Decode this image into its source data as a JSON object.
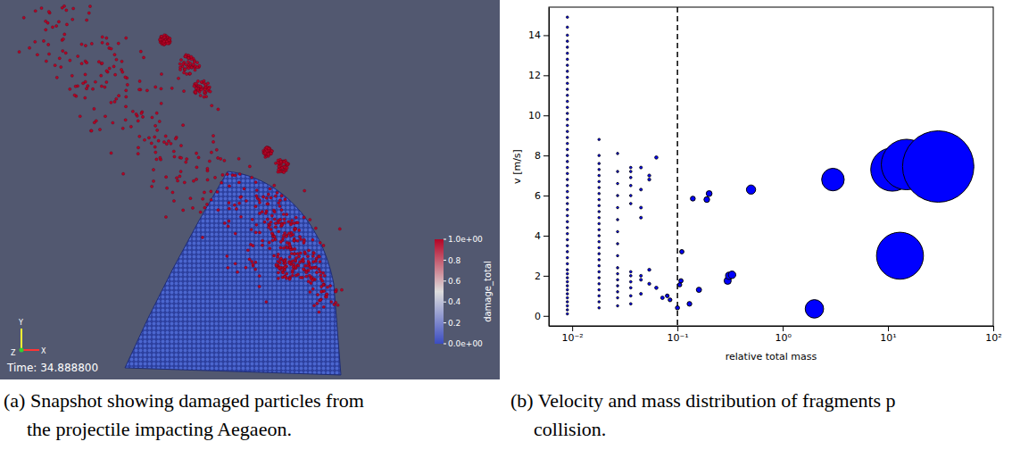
{
  "snapshot": {
    "time_label": "Time: 34.888800",
    "axes_labels": [
      "Y",
      "Z",
      "X"
    ],
    "colorbar": {
      "label": "damage_total",
      "range": [
        0,
        1
      ],
      "ticks": [
        {
          "value": 1,
          "label": "1.0e+00"
        },
        0.8,
        0.6,
        0.4,
        0.2,
        {
          "value": 0,
          "label": "0.0e+00"
        }
      ]
    }
  },
  "chart_data": {
    "type": "scatter",
    "xlabel": "relative total mass",
    "ylabel": "v [m/s]",
    "log": "x",
    "marker": "circle",
    "color": "#0000ff",
    "xlim": [
      0.006,
      100
    ],
    "xticks": [
      {
        "value": 0.01,
        "label": "10⁻²"
      },
      {
        "value": 0.1,
        "label": "10⁻¹"
      },
      {
        "value": 1,
        "label": "10⁰"
      },
      {
        "value": 10,
        "label": "10¹"
      },
      {
        "value": 100,
        "label": "10²"
      }
    ],
    "ylim": [
      -0.5,
      15.4
    ],
    "yticks": [
      0,
      2,
      4,
      6,
      8,
      10,
      12,
      14
    ],
    "reference_line": {
      "x": 0.1,
      "line_style": "dashed"
    },
    "x": [
      0.009,
      0.009,
      0.009,
      0.009,
      0.009,
      0.009,
      0.009,
      0.009,
      0.009,
      0.009,
      0.009,
      0.009,
      0.009,
      0.009,
      0.009,
      0.009,
      0.009,
      0.009,
      0.009,
      0.009,
      0.009,
      0.009,
      0.009,
      0.009,
      0.009,
      0.009,
      0.009,
      0.009,
      0.009,
      0.009,
      0.009,
      0.009,
      0.009,
      0.009,
      0.009,
      0.009,
      0.009,
      0.009,
      0.009,
      0.009,
      0.009,
      0.009,
      0.009,
      0.009,
      0.009,
      0.009,
      0.009,
      0.009,
      0.009,
      0.009,
      0.009,
      0.009,
      0.009,
      0.018,
      0.018,
      0.018,
      0.018,
      0.018,
      0.018,
      0.018,
      0.018,
      0.018,
      0.018,
      0.018,
      0.018,
      0.018,
      0.018,
      0.018,
      0.018,
      0.018,
      0.018,
      0.018,
      0.018,
      0.018,
      0.018,
      0.018,
      0.018,
      0.018,
      0.018,
      0.018,
      0.027,
      0.027,
      0.027,
      0.027,
      0.027,
      0.027,
      0.027,
      0.027,
      0.027,
      0.027,
      0.027,
      0.027,
      0.027,
      0.027,
      0.027,
      0.027,
      0.036,
      0.036,
      0.036,
      0.036,
      0.036,
      0.036,
      0.036,
      0.036,
      0.036,
      0.036,
      0.036,
      0.036,
      0.045,
      0.045,
      0.045,
      0.045,
      0.045,
      0.045,
      0.045,
      0.054,
      0.054,
      0.054,
      0.054,
      0.063,
      0.063,
      0.072,
      0.08,
      0.085,
      0.1,
      0.105,
      0.108,
      0.11,
      0.13,
      0.14,
      0.16,
      0.19,
      0.2,
      0.3,
      0.31,
      0.33,
      0.5,
      2,
      3,
      11,
      13,
      15,
      30
    ],
    "values": [
      0.1,
      0.3,
      0.5,
      0.7,
      0.9,
      1.1,
      1.3,
      1.5,
      1.7,
      1.9,
      2.1,
      2.3,
      2.6,
      2.9,
      3.2,
      3.5,
      3.8,
      4.1,
      4.4,
      4.7,
      5.0,
      5.3,
      5.6,
      5.9,
      6.2,
      6.5,
      6.8,
      7.1,
      7.4,
      7.7,
      8.0,
      8.3,
      8.6,
      8.9,
      9.2,
      9.5,
      9.8,
      10.1,
      10.4,
      10.7,
      11.0,
      11.3,
      11.6,
      11.9,
      12.2,
      12.5,
      12.8,
      13.1,
      13.4,
      13.7,
      14.0,
      14.4,
      14.9,
      0.4,
      0.7,
      1.0,
      1.3,
      1.6,
      1.9,
      2.2,
      2.5,
      2.8,
      3.1,
      3.4,
      3.7,
      4.0,
      4.3,
      4.6,
      4.9,
      5.2,
      5.5,
      5.8,
      6.1,
      6.4,
      6.7,
      7.0,
      7.3,
      7.6,
      8.0,
      8.8,
      0.5,
      0.9,
      1.2,
      1.5,
      1.8,
      2.1,
      2.4,
      3.0,
      3.6,
      4.2,
      4.8,
      5.4,
      6.0,
      6.6,
      7.2,
      8.1,
      0.6,
      1.0,
      1.4,
      1.7,
      2.0,
      2.2,
      5.6,
      6.0,
      6.5,
      6.9,
      7.2,
      7.4,
      1.1,
      1.8,
      2.0,
      4.9,
      5.4,
      6.3,
      7.4,
      1.6,
      2.3,
      6.8,
      7.0,
      1.4,
      7.9,
      0.9,
      1.0,
      0.8,
      0.4,
      1.55,
      1.75,
      3.2,
      0.6,
      5.85,
      1.3,
      5.8,
      6.1,
      1.75,
      2.0,
      2.05,
      6.3,
      0.35,
      6.8,
      7.3,
      3.0,
      7.55,
      7.45
    ]
  },
  "captions": [
    [
      "(a) Snapshot showing damaged particles from",
      "the projectile impacting Aegaeon."
    ],
    [
      "(b) Velocity and mass distribution of fragments p",
      "collision."
    ]
  ]
}
